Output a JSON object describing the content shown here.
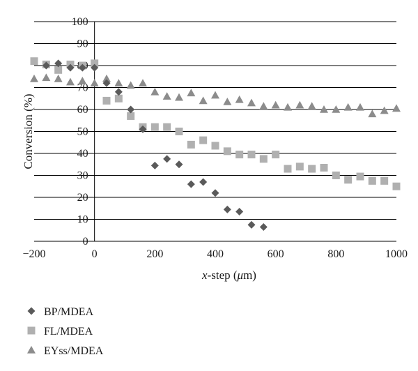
{
  "chart_data": {
    "type": "scatter",
    "xlabel": "x-step (μm)",
    "xlabel_parts": {
      "italic": "x",
      "middle": "-step (",
      "unit_italic": "μ",
      "end": "m)"
    },
    "ylabel": "Conversion (%)",
    "xlim": [
      -200,
      1000
    ],
    "ylim": [
      0,
      100
    ],
    "xticks": [
      -200,
      0,
      200,
      400,
      600,
      800,
      1000
    ],
    "yticks": [
      0,
      10,
      20,
      30,
      40,
      50,
      60,
      70,
      80,
      90,
      100
    ],
    "grid": {
      "horizontal": true,
      "vertical": false
    },
    "legend_position": "bottom-left",
    "series": [
      {
        "name": "BP/MDEA",
        "marker": "diamond",
        "color": "#5a5a5a",
        "points": [
          [
            -160,
            80
          ],
          [
            -120,
            81
          ],
          [
            -80,
            79
          ],
          [
            -40,
            79
          ],
          [
            0,
            79
          ],
          [
            40,
            72
          ],
          [
            80,
            68
          ],
          [
            120,
            60
          ],
          [
            160,
            51
          ],
          [
            200,
            34.5
          ],
          [
            240,
            37.5
          ],
          [
            280,
            35
          ],
          [
            320,
            26
          ],
          [
            360,
            27
          ],
          [
            400,
            22
          ],
          [
            440,
            14.5
          ],
          [
            480,
            13.5
          ],
          [
            520,
            7.5
          ],
          [
            560,
            6.5
          ]
        ]
      },
      {
        "name": "FL/MDEA",
        "marker": "square",
        "color": "#b0b0b0",
        "points": [
          [
            -200,
            82
          ],
          [
            -160,
            80.5
          ],
          [
            -120,
            78
          ],
          [
            -80,
            80.5
          ],
          [
            -40,
            80
          ],
          [
            0,
            81
          ],
          [
            40,
            64
          ],
          [
            80,
            65
          ],
          [
            120,
            57
          ],
          [
            160,
            52
          ],
          [
            200,
            52
          ],
          [
            240,
            52
          ],
          [
            280,
            50
          ],
          [
            320,
            44
          ],
          [
            360,
            46
          ],
          [
            400,
            43.5
          ],
          [
            440,
            41
          ],
          [
            480,
            39.5
          ],
          [
            520,
            39.5
          ],
          [
            560,
            37.5
          ],
          [
            600,
            39.5
          ],
          [
            640,
            33
          ],
          [
            680,
            34
          ],
          [
            720,
            33
          ],
          [
            760,
            33.5
          ],
          [
            800,
            30
          ],
          [
            840,
            28
          ],
          [
            880,
            29.5
          ],
          [
            920,
            27.5
          ],
          [
            960,
            27.5
          ],
          [
            1000,
            25
          ]
        ]
      },
      {
        "name": "EYss/MDEA",
        "marker": "triangle",
        "color": "#8c8c8c",
        "points": [
          [
            -200,
            74
          ],
          [
            -160,
            74.5
          ],
          [
            -120,
            74
          ],
          [
            -80,
            72.5
          ],
          [
            -40,
            73
          ],
          [
            0,
            72
          ],
          [
            40,
            74
          ],
          [
            80,
            72
          ],
          [
            120,
            71
          ],
          [
            160,
            72
          ],
          [
            200,
            68
          ],
          [
            240,
            66
          ],
          [
            280,
            65.5
          ],
          [
            320,
            67.5
          ],
          [
            360,
            64
          ],
          [
            400,
            66.5
          ],
          [
            440,
            63.5
          ],
          [
            480,
            64.5
          ],
          [
            520,
            63
          ],
          [
            560,
            61.5
          ],
          [
            600,
            62
          ],
          [
            640,
            61
          ],
          [
            680,
            62
          ],
          [
            720,
            61.5
          ],
          [
            760,
            60
          ],
          [
            800,
            60
          ],
          [
            840,
            61
          ],
          [
            880,
            61
          ],
          [
            920,
            58
          ],
          [
            960,
            59.5
          ],
          [
            1000,
            60.5
          ]
        ]
      }
    ]
  }
}
